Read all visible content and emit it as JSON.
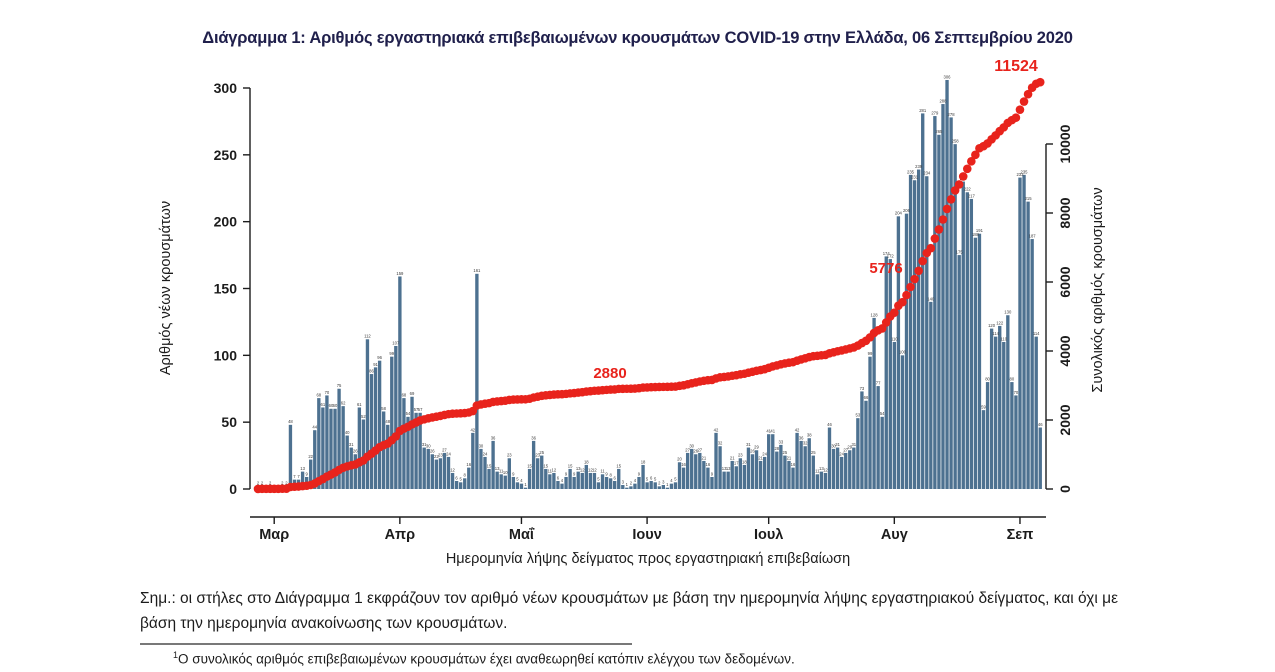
{
  "title": "Διάγραμμα 1: Αριθμός εργαστηριακά επιβεβαιωμένων κρουσμάτων COVID-19 στην Ελλάδα, 06 Σεπτεμβρίου 2020",
  "colors": {
    "bar": "#4d7190",
    "cumulative_red": "#e8231c",
    "axis": "#1c1c1c",
    "bar_label": "#3a3a3a",
    "title": "#20204c"
  },
  "note": "Σημ.: οι στήλες στο Διάγραμμα 1 εκφράζουν τον αριθμό νέων κρουσμάτων με βάση την ημερομηνία λήψης εργαστηριακού δείγματος, και όχι με βάση την ημερομηνία ανακοίνωσης των κρουσμάτων.",
  "footnote_sup": "1",
  "footnote": "Ο συνολικός αριθμός επιβεβαιωμένων κρουσμάτων έχει αναθεωρηθεί κατόπιν ελέγχου των δεδομένων.",
  "chart_data": {
    "type": "bar",
    "title": "Διάγραμμα 1: Αριθμός εργαστηριακά επιβεβαιωμένων κρουσμάτων COVID-19 στην Ελλάδα, 06 Σεπτεμβρίου 2020",
    "xlabel": "Ημερομηνία λήψης δείγματος προς εργαστηριακή επιβεβαίωση",
    "ylabel_left": "Αριθμός νέων κρουσμάτων",
    "ylabel_right": "Συνολικός αριθμός κρουσμάτων",
    "x_tick_labels": [
      "Μαρ",
      "Απρ",
      "Μαΐ",
      "Ιουν",
      "Ιουλ",
      "Αυγ",
      "Σεπ"
    ],
    "x_tick_day_index": [
      4,
      35,
      65,
      96,
      126,
      157,
      188
    ],
    "y_left_ticks": [
      0,
      50,
      100,
      150,
      200,
      250,
      300
    ],
    "y_right_ticks": [
      0,
      2000,
      4000,
      6000,
      8000,
      10000
    ],
    "ylim_left": [
      0,
      300
    ],
    "ylim_right": [
      0,
      10000
    ],
    "grid": false,
    "start_date": "2020-02-26",
    "end_date": "2020-09-06",
    "series": [
      {
        "name": "daily_new_cases",
        "render": "bar",
        "values_note": "daily laboratory-confirmed cases by sampling date, Feb 26 - Sep 6 2020 (values estimated from bar labels)",
        "values": [
          2,
          2,
          0,
          2,
          0,
          0,
          2,
          2,
          48,
          7,
          7,
          13,
          9,
          22,
          44,
          68,
          61,
          70,
          60,
          60,
          75,
          62,
          40,
          31,
          26,
          61,
          52,
          112,
          86,
          91,
          96,
          58,
          48,
          99,
          107,
          159,
          68,
          54,
          69,
          57,
          57,
          31,
          30,
          26,
          22,
          23,
          27,
          24,
          12,
          6,
          5,
          8,
          16,
          42,
          161,
          30,
          24,
          15,
          36,
          13,
          11,
          10,
          23,
          9,
          5,
          4,
          1,
          15,
          36,
          23,
          25,
          15,
          11,
          12,
          6,
          4,
          9,
          15,
          9,
          13,
          12,
          18,
          12,
          12,
          5,
          11,
          9,
          8,
          6,
          15,
          3,
          1,
          2,
          4,
          9,
          18,
          5,
          6,
          5,
          2,
          3,
          1,
          4,
          5,
          20,
          16,
          27,
          30,
          26,
          27,
          21,
          16,
          9,
          42,
          32,
          13,
          13,
          21,
          17,
          23,
          18,
          31,
          26,
          29,
          21,
          24,
          41,
          41,
          28,
          33,
          25,
          21,
          16,
          42,
          36,
          32,
          38,
          25,
          11,
          13,
          12,
          46,
          30,
          31,
          24,
          27,
          29,
          31,
          53,
          73,
          66,
          99,
          128,
          77,
          54,
          174,
          172,
          110,
          204,
          100,
          206,
          235,
          231,
          239,
          281,
          234,
          140,
          279,
          265,
          288,
          306,
          278,
          258,
          175,
          230,
          222,
          217,
          188,
          191,
          59,
          80,
          120,
          114,
          122,
          110,
          130,
          80,
          70,
          233,
          235,
          215,
          187,
          114,
          46
        ]
      },
      {
        "name": "cumulative_cases",
        "render": "scatter",
        "derived": "cumulative sum of daily_new_cases",
        "final_value": 11524
      }
    ],
    "annotations": [
      {
        "text": "2880",
        "x": 610,
        "y": 378,
        "size": 15
      },
      {
        "text": "5776",
        "x": 886,
        "y": 273,
        "size": 15
      },
      {
        "text": "11524",
        "x": 1016,
        "y": 71,
        "size": 16
      }
    ]
  }
}
